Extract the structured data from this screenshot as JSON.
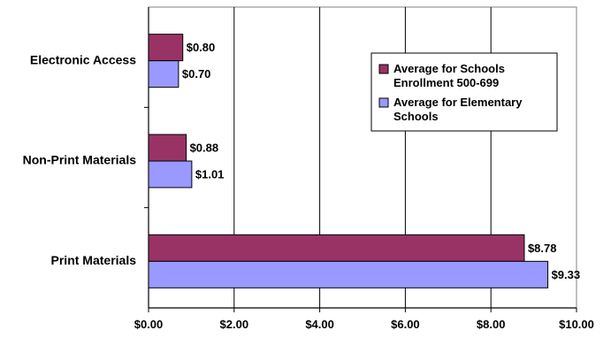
{
  "chart_data": {
    "type": "bar",
    "orientation": "horizontal",
    "categories": [
      "Electronic Access",
      "Non-Print Materials",
      "Print Materials"
    ],
    "series": [
      {
        "name": "Average for Schools Enrollment 500-699",
        "name_lines": [
          "Average for Schools",
          "Enrollment 500-699"
        ],
        "color": "#993366",
        "values": [
          0.8,
          0.88,
          8.78
        ],
        "labels": [
          "$0.80",
          "$0.88",
          "$8.78"
        ]
      },
      {
        "name": "Average for Elementary Schools",
        "name_lines": [
          "Average for Elementary",
          "Schools"
        ],
        "color": "#9999ff",
        "values": [
          0.7,
          1.01,
          9.33
        ],
        "labels": [
          "$0.70",
          "$1.01",
          "$9.33"
        ]
      }
    ],
    "x_ticks": [
      0,
      2,
      4,
      6,
      8,
      10
    ],
    "x_tick_labels": [
      "$0.00",
      "$2.00",
      "$4.00",
      "$6.00",
      "$8.00",
      "$10.00"
    ],
    "xlim": [
      0,
      10
    ],
    "title": "",
    "xlabel": "",
    "ylabel": "",
    "grid": true,
    "legend_position": "right"
  }
}
